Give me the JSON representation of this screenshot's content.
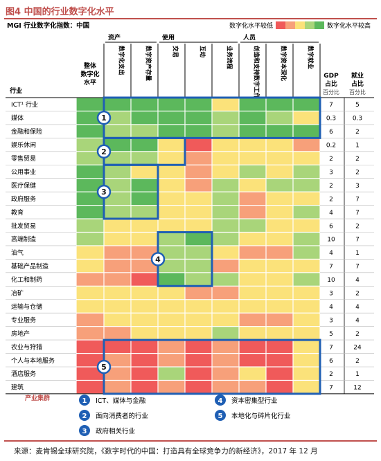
{
  "title": "图4 中国的行业数字化水平",
  "subtitle": "MGI 行业数字化指数：中国",
  "legend": {
    "low_label": "数字化水平较低",
    "high_label": "数字化水平较高",
    "scale_colors": [
      "#f05a5a",
      "#f7a07a",
      "#fbe27a",
      "#a9d57a",
      "#5cb85c"
    ]
  },
  "headers": {
    "industry": "行业",
    "overall": "整体数字化水平",
    "groups": [
      "资产",
      "使用",
      "人员"
    ],
    "columns": [
      "数字化支出",
      "数字资产存量",
      "交易",
      "互动",
      "业务流程",
      "创造和支持数字工作人员",
      "数字资本深化",
      "数字就业"
    ],
    "gdp": "GDP占比",
    "emp": "就业占比",
    "pct": "百分比"
  },
  "chart_data": {
    "type": "heatmap",
    "color_scale": "1 = 数字化水平较低, 5 = 数字化水平较高",
    "rows": [
      "ICT¹ 行业",
      "媒体",
      "金融和保险",
      "娱乐休闲",
      "零售贸易",
      "公用事业",
      "医疗保健",
      "政府服务",
      "教育",
      "批发贸易",
      "高端制造",
      "油气",
      "基础产品制造",
      "化工和制药",
      "冶矿",
      "运输与仓储",
      "专业服务",
      "房地产",
      "农业与狩猎",
      "个人与本地服务",
      "酒店服务",
      "建筑"
    ],
    "columns": [
      "整体数字化水平",
      "数字化支出",
      "数字资产存量",
      "交易",
      "互动",
      "业务流程",
      "创造和支持数字工作人员",
      "数字资本深化",
      "数字就业"
    ],
    "values": [
      [
        5,
        5,
        5,
        5,
        5,
        3,
        5,
        5,
        5
      ],
      [
        5,
        4,
        5,
        5,
        5,
        4,
        5,
        4,
        3
      ],
      [
        5,
        4,
        4,
        5,
        5,
        4,
        5,
        5,
        5
      ],
      [
        4,
        5,
        5,
        3,
        1,
        3,
        3,
        3,
        2
      ],
      [
        4,
        4,
        4,
        3,
        2,
        3,
        3,
        3,
        3
      ],
      [
        5,
        4,
        3,
        3,
        2,
        3,
        4,
        3,
        4
      ],
      [
        5,
        4,
        5,
        3,
        2,
        4,
        3,
        4,
        4
      ],
      [
        5,
        4,
        5,
        3,
        3,
        4,
        2,
        3,
        3
      ],
      [
        5,
        4,
        4,
        3,
        3,
        4,
        2,
        3,
        4
      ],
      [
        4,
        3,
        3,
        3,
        3,
        4,
        4,
        3,
        3
      ],
      [
        4,
        3,
        3,
        4,
        5,
        4,
        3,
        3,
        4
      ],
      [
        3,
        2,
        2,
        4,
        4,
        3,
        2,
        2,
        4
      ],
      [
        3,
        2,
        2,
        4,
        4,
        2,
        3,
        3,
        3
      ],
      [
        2,
        2,
        1,
        5,
        4,
        4,
        3,
        3,
        4
      ],
      [
        3,
        3,
        3,
        3,
        2,
        2,
        3,
        3,
        3
      ],
      [
        3,
        3,
        3,
        3,
        3,
        3,
        3,
        3,
        3
      ],
      [
        2,
        3,
        3,
        3,
        3,
        3,
        2,
        2,
        3
      ],
      [
        2,
        2,
        3,
        3,
        3,
        4,
        3,
        3,
        3
      ],
      [
        1,
        1,
        1,
        2,
        1,
        2,
        1,
        1,
        3
      ],
      [
        1,
        2,
        1,
        2,
        1,
        2,
        1,
        1,
        3
      ],
      [
        1,
        2,
        1,
        4,
        1,
        2,
        3,
        1,
        3
      ],
      [
        1,
        2,
        1,
        2,
        1,
        2,
        2,
        1,
        3
      ]
    ],
    "gdp_share": [
      "7",
      "0.3",
      "6",
      "0.2",
      "2",
      "3",
      "2",
      "2",
      "4",
      "6",
      "10",
      "4",
      "7",
      "10",
      "3",
      "4",
      "3",
      "5",
      "7",
      "6",
      "2",
      "7"
    ],
    "employment_share": [
      "5",
      "0.3",
      "2",
      "1",
      "2",
      "2",
      "3",
      "7",
      "7",
      "2",
      "7",
      "1",
      "7",
      "4",
      "2",
      "4",
      "4",
      "2",
      "24",
      "2",
      "1",
      "12"
    ]
  },
  "clusters": {
    "heading": "产业集群",
    "items": [
      {
        "num": "1",
        "label": "ICT、媒体与金融"
      },
      {
        "num": "2",
        "label": "面向消费者的行业"
      },
      {
        "num": "3",
        "label": "政府相关行业"
      },
      {
        "num": "4",
        "label": "资本密集型行业"
      },
      {
        "num": "5",
        "label": "本地化与碎片化行业"
      }
    ]
  },
  "colors": {
    "accent": "#c0504d",
    "cluster_box": "#1f5fb4"
  },
  "source": "来源：麦肯锡全球研究院，《数字时代的中国：打造具有全球竞争力的新经济》，2017 年 12 月"
}
